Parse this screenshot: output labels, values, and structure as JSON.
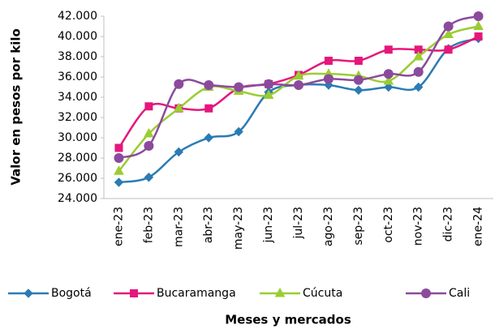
{
  "chart_data": {
    "type": "line",
    "y_label": "Valor en pesos por kilo",
    "x_label": "Meses y mercados",
    "categories": [
      "ene-23",
      "feb-23",
      "mar-23",
      "abr-23",
      "may-23",
      "jun-23",
      "jul-23",
      "ago-23",
      "sep-23",
      "oct-23",
      "nov-23",
      "dic-23",
      "ene-24"
    ],
    "series": [
      {
        "name": "Bogotá",
        "color": "#2b7bb4",
        "marker": "diamond",
        "values": [
          25600,
          26100,
          28600,
          30000,
          30600,
          34500,
          35200,
          35200,
          34700,
          35000,
          35000,
          38800,
          39800
        ]
      },
      {
        "name": "Bucaramanga",
        "color": "#e5177b",
        "marker": "square",
        "values": [
          29000,
          33100,
          32900,
          32900,
          34900,
          35300,
          36200,
          37600,
          37600,
          38700,
          38700,
          38700,
          40000
        ]
      },
      {
        "name": "Cúcuta",
        "color": "#9acd32",
        "marker": "triangle",
        "values": [
          26700,
          30400,
          32900,
          35000,
          34600,
          34200,
          36100,
          36300,
          36100,
          35600,
          38000,
          40200,
          41000
        ]
      },
      {
        "name": "Cali",
        "color": "#8b4a9c",
        "marker": "circle",
        "values": [
          28000,
          29200,
          35300,
          35200,
          35000,
          35300,
          35200,
          35800,
          35700,
          36300,
          36500,
          41000,
          42000
        ]
      }
    ],
    "ylim": [
      24000,
      42000
    ],
    "yticks": [
      {
        "value": 24000,
        "label": "24.000"
      },
      {
        "value": 26000,
        "label": "26.000"
      },
      {
        "value": 28000,
        "label": "28.000"
      },
      {
        "value": 30000,
        "label": "30.000"
      },
      {
        "value": 32000,
        "label": "32.000"
      },
      {
        "value": 34000,
        "label": "34.000"
      },
      {
        "value": 36000,
        "label": "36.000"
      },
      {
        "value": 38000,
        "label": "38.000"
      },
      {
        "value": 40000,
        "label": "40.000"
      },
      {
        "value": 42000,
        "label": "42.000"
      }
    ],
    "grid": false,
    "legend": "bottom"
  }
}
